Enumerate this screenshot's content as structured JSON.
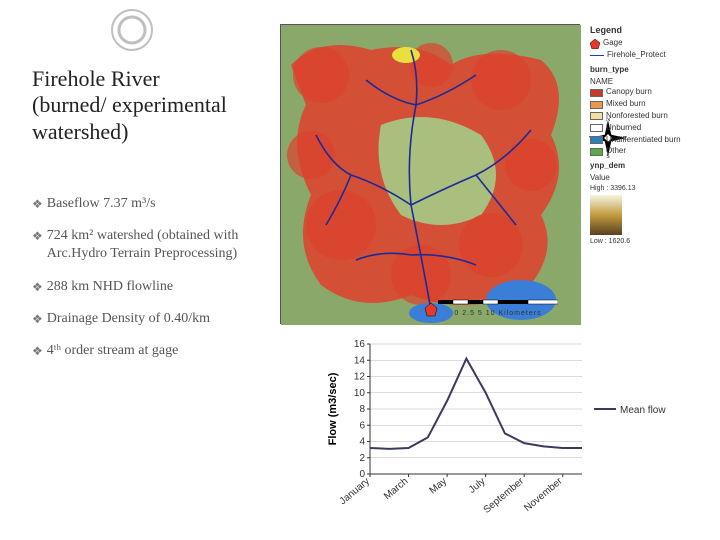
{
  "title": "Firehole River (burned/ experimental watershed)",
  "bullets": [
    "Baseflow 7.37 m³/s",
    "724 km² watershed (obtained with Arc.Hydro Terrain Preprocessing)",
    "288 km NHD flowline",
    "Drainage Density of 0.40/km",
    "4ᵗʰ order stream at gage"
  ],
  "legend": {
    "header": "Legend",
    "gage": "Gage",
    "protect": "Firehole_Protect",
    "burn_section": "burn_type",
    "burn_sub": "NAME",
    "burn_items": [
      {
        "label": "Canopy burn",
        "color": "#c53a2b"
      },
      {
        "label": "Mixed burn",
        "color": "#e99949"
      },
      {
        "label": "Nonforested burn",
        "color": "#f3e0a1"
      },
      {
        "label": "Unburned",
        "color": "#ffffff"
      },
      {
        "label": "Undifferentiated burn",
        "color": "#2a80b9"
      },
      {
        "label": "Other",
        "color": "#5fa84e"
      }
    ],
    "dem_section": "ynp_dem",
    "dem_sub": "Value",
    "dem_high": "High : 3396.13",
    "dem_low": "Low : 1620.6"
  },
  "scalebar": {
    "ticks": "0 2.5 5    10 Kilometers"
  },
  "chart": {
    "type": "line",
    "y_label": "Flow (m3/sec)",
    "series_label": "Mean flow",
    "series_color": "#3a3a5e",
    "x_categories": [
      "January",
      "March",
      "May",
      "July",
      "September",
      "November"
    ],
    "y_ticks": [
      0,
      2,
      4,
      6,
      8,
      10,
      12,
      14,
      16
    ],
    "ylim": [
      0,
      16
    ],
    "values_by_month": [
      3.2,
      3.1,
      3.2,
      4.5,
      9.0,
      14.2,
      10.0,
      5.0,
      3.8,
      3.4,
      3.2,
      3.2
    ],
    "grid_color": "#b8b8b8",
    "background_color": "#ffffff",
    "tick_fontsize": 10,
    "label_fontsize": 11
  },
  "map": {
    "background_base": "#8aa86a",
    "burn_overlay": "#dd422e",
    "water": "#3a7ed8",
    "stream_color": "#1a2a9a"
  }
}
